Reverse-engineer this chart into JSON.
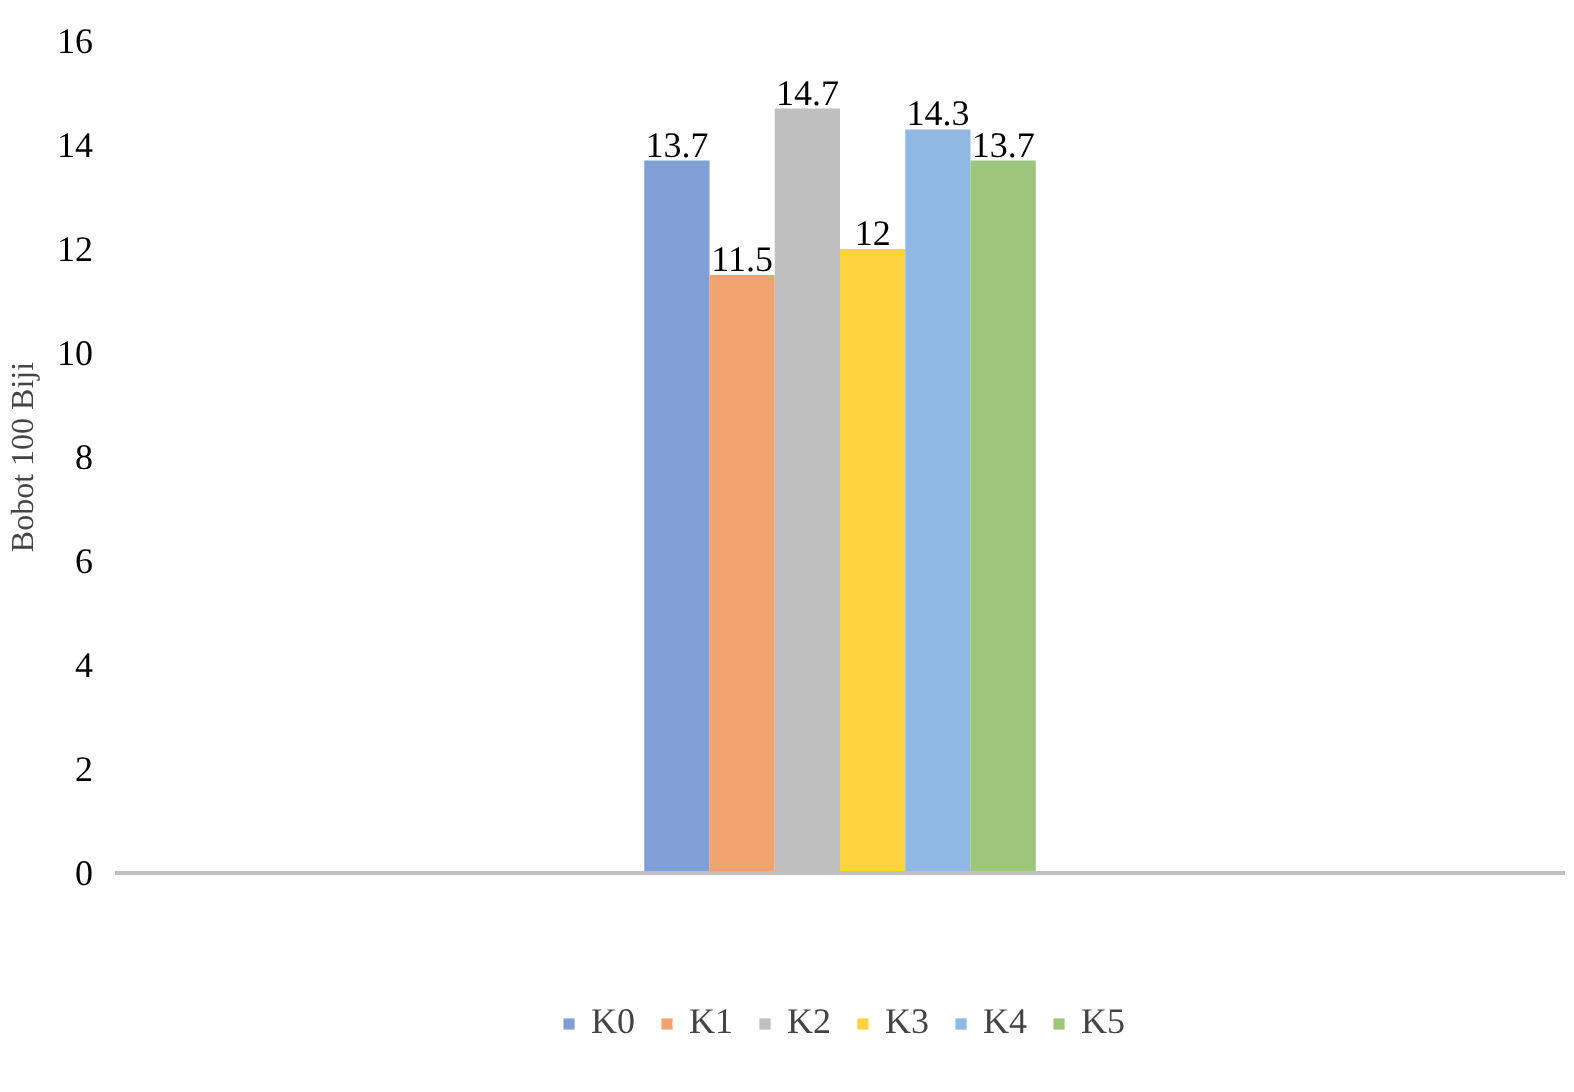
{
  "chart_data": {
    "type": "bar",
    "ylabel": "Bobot 100 Biji",
    "categories": [
      null
    ],
    "series": [
      {
        "name": "K0",
        "color": "#7f9fd6",
        "values": [
          13.7
        ]
      },
      {
        "name": "K1",
        "color": "#f2a470",
        "values": [
          11.5
        ]
      },
      {
        "name": "K2",
        "color": "#bfbfbf",
        "values": [
          14.7
        ]
      },
      {
        "name": "K3",
        "color": "#ffd23f",
        "values": [
          12
        ]
      },
      {
        "name": "K4",
        "color": "#8fb9e2",
        "values": [
          14.3
        ]
      },
      {
        "name": "K5",
        "color": "#9dc67c",
        "values": [
          13.7
        ]
      }
    ],
    "ylim": [
      0,
      16
    ],
    "yticks": [
      0,
      2,
      4,
      6,
      8,
      10,
      12,
      14,
      16
    ],
    "data_labels": true,
    "grid": false,
    "legend": "bottom"
  }
}
